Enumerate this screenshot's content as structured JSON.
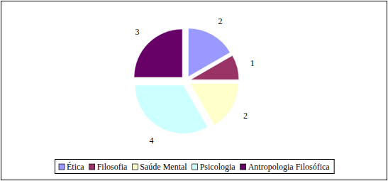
{
  "chart_data": {
    "type": "pie",
    "categories": [
      "Ética",
      "Filosofia",
      "Saúde Mental",
      "Psicologia",
      "Antropologia Filosófica"
    ],
    "values": [
      2,
      1,
      2,
      4,
      3
    ],
    "colors": [
      "#9999ff",
      "#993366",
      "#ffffcc",
      "#ccffff",
      "#660066"
    ],
    "data_labels": true,
    "legend": "bottom"
  }
}
